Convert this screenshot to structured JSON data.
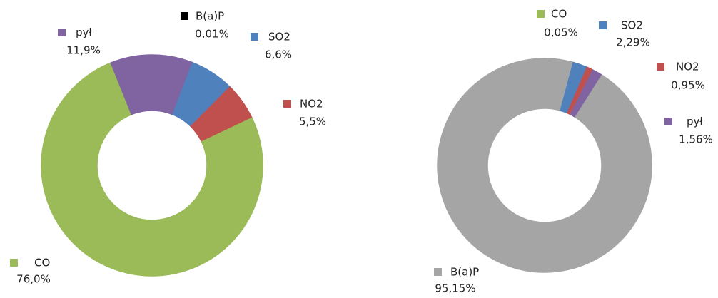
{
  "chart_data": [
    {
      "type": "donut",
      "categories": [
        "B(a)P",
        "SO2",
        "NO2",
        "CO",
        "pył"
      ],
      "values": [
        0.01,
        6.6,
        5.5,
        76.0,
        11.9
      ],
      "value_labels": [
        "0,01%",
        "6,6%",
        "5,5%",
        "76,0%",
        "11,9%"
      ],
      "colors": [
        "#000000",
        "#4f81bd",
        "#c0504d",
        "#9bbb59",
        "#8064a2"
      ]
    },
    {
      "type": "donut",
      "categories": [
        "CO",
        "SO2",
        "NO2",
        "pył",
        "B(a)P"
      ],
      "values": [
        0.05,
        2.29,
        0.95,
        1.56,
        95.15
      ],
      "value_labels": [
        "0,05%",
        "2,29%",
        "0,95%",
        "1,56%",
        "95,15%"
      ],
      "colors": [
        "#9bbb59",
        "#4f81bd",
        "#c0504d",
        "#8064a2",
        "#a5a5a5"
      ]
    }
  ]
}
